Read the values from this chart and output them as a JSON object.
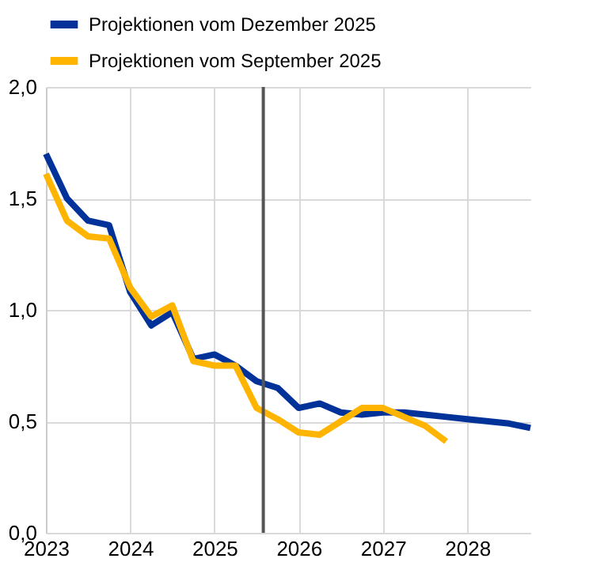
{
  "chart_data": {
    "type": "line",
    "x": [
      2023,
      2023.25,
      2023.5,
      2023.75,
      2024,
      2024.25,
      2024.5,
      2024.75,
      2025,
      2025.25,
      2025.5,
      2025.75,
      2026,
      2026.25,
      2026.5,
      2026.75,
      2027,
      2027.25,
      2027.5,
      2027.75,
      2028,
      2028.25,
      2028.5,
      2028.75
    ],
    "series": [
      {
        "name": "Projektionen vom Dezember 2025",
        "color": "#003299",
        "values": [
          1.7,
          1.5,
          1.4,
          1.38,
          1.08,
          0.93,
          0.99,
          0.78,
          0.8,
          0.75,
          0.68,
          0.65,
          0.56,
          0.58,
          0.54,
          0.53,
          0.54,
          0.54,
          0.53,
          0.52,
          0.51,
          0.5,
          0.49,
          0.47
        ]
      },
      {
        "name": "Projektionen vom September 2025",
        "color": "#ffb400",
        "values": [
          1.61,
          1.4,
          1.33,
          1.32,
          1.1,
          0.97,
          1.02,
          0.77,
          0.75,
          0.75,
          0.56,
          0.51,
          0.45,
          0.44,
          0.5,
          0.56,
          0.56,
          0.52,
          0.48,
          0.41,
          null,
          null,
          null,
          null
        ]
      }
    ],
    "xlim": [
      2023,
      2028.75
    ],
    "xticks": [
      2023,
      2024,
      2025,
      2026,
      2027,
      2028
    ],
    "ylim": [
      0,
      2
    ],
    "yticks": [
      {
        "value": 0,
        "label": "0,0"
      },
      {
        "value": 0.5,
        "label": "0,5"
      },
      {
        "value": 1,
        "label": "1,0"
      },
      {
        "value": 1.5,
        "label": "1,5"
      },
      {
        "value": 2,
        "label": "2,0"
      }
    ],
    "ref_lines": [
      {
        "axis": "x",
        "value": 2025.58,
        "color": "#555555"
      }
    ],
    "grid": true,
    "legend": "top left",
    "line_style": "solid",
    "marker": "none"
  }
}
